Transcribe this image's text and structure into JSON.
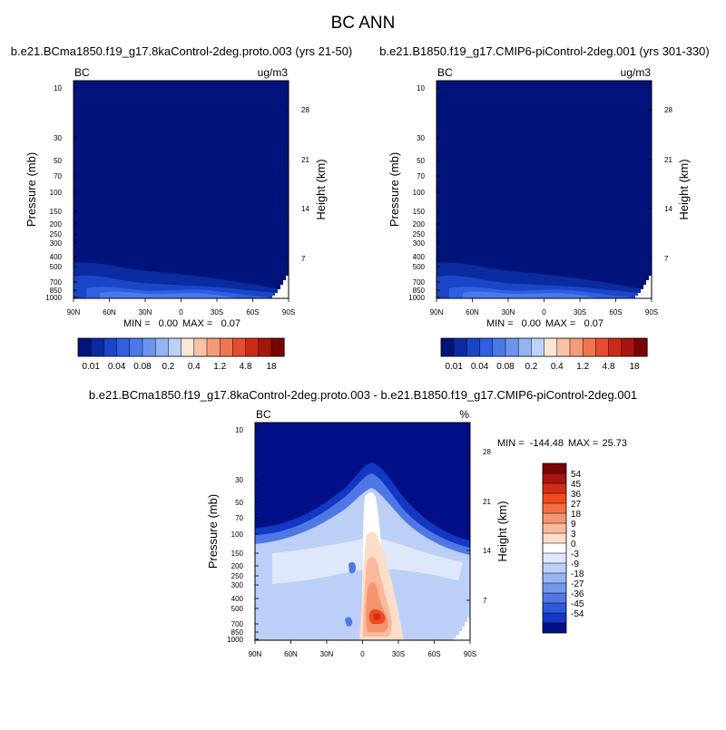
{
  "figure": {
    "title": "BC ANN",
    "colors": {
      "seq_colorbar": [
        "#00137a",
        "#0a2ca0",
        "#1a46c8",
        "#2f60e2",
        "#4a7aea",
        "#6d95f0",
        "#94b3f4",
        "#bdd2f8",
        "#fde6d8",
        "#f8c2a4",
        "#f49c7a",
        "#ef7650",
        "#e64d2e",
        "#cc2a18",
        "#a8150c",
        "#7a0404"
      ],
      "div_colorbar": [
        "#7a0404",
        "#a8150c",
        "#d32c14",
        "#ef4a20",
        "#f36f42",
        "#f69470",
        "#f9b99c",
        "#fcddc8",
        "#ffffff",
        "#dde8fb",
        "#bccff7",
        "#99b4f2",
        "#7497ed",
        "#4f78e6",
        "#2e58dc",
        "#1238c4",
        "#020f86"
      ]
    }
  },
  "chart_data": [
    {
      "type": "heatmap",
      "id": "left",
      "title": "b.e21.BCma1850.f19_g17.8kaControl-2deg.proto.003 (yrs 21-50)",
      "corner_left": "BC",
      "corner_right": "ug/m3",
      "xlabel": "",
      "ylabel": "Pressure (mb)",
      "ylabel_right": "Height (km)",
      "x_ticks": [
        "90N",
        "60N",
        "30N",
        "0",
        "30S",
        "60S",
        "90S"
      ],
      "y_ticks": [
        10,
        30,
        50,
        70,
        100,
        150,
        200,
        250,
        300,
        400,
        500,
        700,
        850,
        1000
      ],
      "y_log": true,
      "ylim": [
        1000,
        10
      ],
      "height_ticks": [
        28,
        21,
        14,
        7
      ],
      "min_label": "MIN =",
      "min_value": "0.00",
      "max_label": "MAX =",
      "max_value": "0.07",
      "colorbar_labels": [
        "0.01",
        "0.04",
        "0.08",
        "0.2",
        "0.4",
        "1.2",
        "4.8",
        "18"
      ]
    },
    {
      "type": "heatmap",
      "id": "right",
      "title": "b.e21.B1850.f19_g17.CMIP6-piControl-2deg.001 (yrs 301-330)",
      "corner_left": "BC",
      "corner_right": "ug/m3",
      "xlabel": "",
      "ylabel": "Pressure (mb)",
      "ylabel_right": "Height (km)",
      "x_ticks": [
        "90N",
        "60N",
        "30N",
        "0",
        "30S",
        "60S",
        "90S"
      ],
      "y_ticks": [
        10,
        30,
        50,
        70,
        100,
        150,
        200,
        250,
        300,
        400,
        500,
        700,
        850,
        1000
      ],
      "y_log": true,
      "ylim": [
        1000,
        10
      ],
      "height_ticks": [
        28,
        21,
        14,
        7
      ],
      "min_label": "MIN =",
      "min_value": "0.00",
      "max_label": "MAX =",
      "max_value": "0.07",
      "colorbar_labels": [
        "0.01",
        "0.04",
        "0.08",
        "0.2",
        "0.4",
        "1.2",
        "4.8",
        "18"
      ]
    },
    {
      "type": "heatmap",
      "id": "diff",
      "title": "b.e21.BCma1850.f19_g17.8kaControl-2deg.proto.003 - b.e21.B1850.f19_g17.CMIP6-piControl-2deg.001",
      "corner_left": "BC",
      "corner_right": "%",
      "xlabel": "",
      "ylabel": "Pressure (mb)",
      "ylabel_right": "Height (km)",
      "x_ticks": [
        "90N",
        "60N",
        "30N",
        "0",
        "30S",
        "60S",
        "90S"
      ],
      "y_ticks": [
        10,
        30,
        50,
        70,
        100,
        150,
        200,
        250,
        300,
        400,
        500,
        700,
        850,
        1000
      ],
      "y_log": true,
      "ylim": [
        1000,
        10
      ],
      "height_ticks": [
        28,
        21,
        14,
        7
      ],
      "min_label": "MIN =",
      "min_value": "-144.48",
      "max_label": "MAX =",
      "max_value": "25.73",
      "colorbar_labels": [
        "54",
        "45",
        "36",
        "27",
        "18",
        "9",
        "3",
        "0",
        "-3",
        "-9",
        "-18",
        "-27",
        "-36",
        "-45",
        "-54"
      ]
    }
  ]
}
